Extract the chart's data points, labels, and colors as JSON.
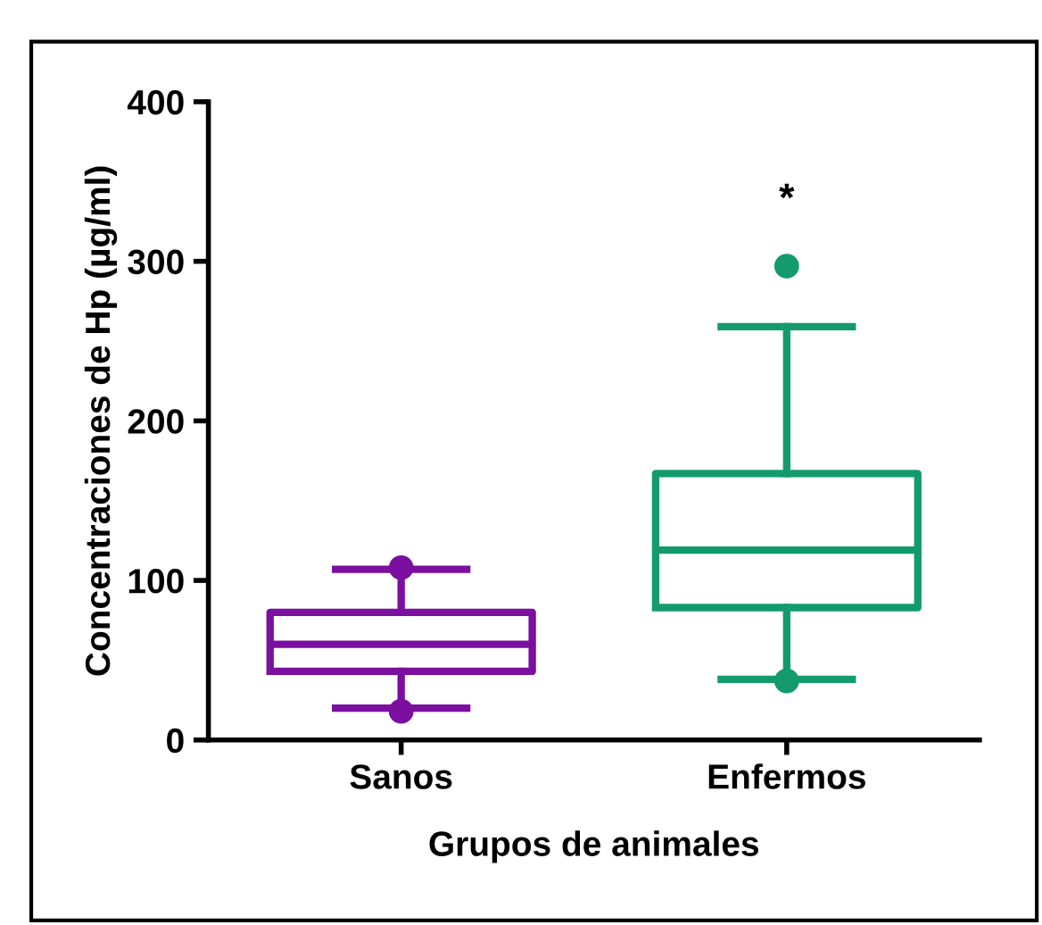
{
  "chart_data": {
    "type": "box",
    "xlabel": "Grupos de animales",
    "ylabel": "Concentraciones de Hp (µg/ml)",
    "categories": [
      "Sanos",
      "Enfermos"
    ],
    "boxes": [
      {
        "low": 20,
        "q1": 43,
        "median": 60,
        "q3": 80,
        "high": 107,
        "outliers": [
          108,
          18
        ]
      },
      {
        "low": 38,
        "q1": 83,
        "median": 119,
        "q3": 167,
        "high": 259,
        "outliers": [
          297,
          37
        ]
      }
    ],
    "colors": [
      "#7b0fa0",
      "#139b6e"
    ],
    "ylim": [
      0,
      400
    ],
    "yticks": [
      0,
      100,
      200,
      300,
      400
    ],
    "grid": false,
    "annotations": [
      "*"
    ]
  }
}
